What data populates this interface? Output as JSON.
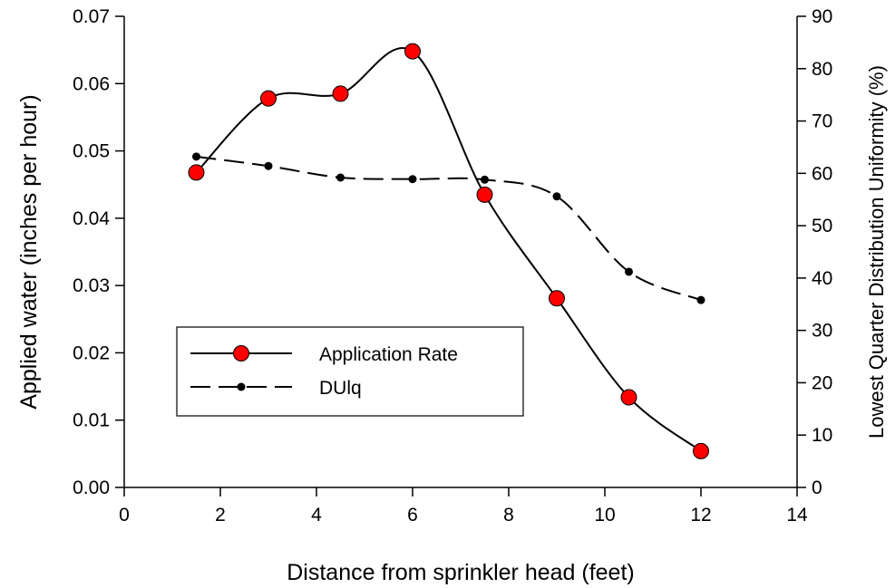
{
  "chart_data": {
    "type": "line",
    "xlabel": "Distance from sprinkler head (feet)",
    "ylabel": "Applied water (inches per hour)",
    "y2label": "Lowest Quarter Distribution Uniformity (%)",
    "xlim": [
      0,
      14
    ],
    "ylim": [
      0,
      0.07
    ],
    "y2lim": [
      0,
      90
    ],
    "x_ticks": [
      "0",
      "2",
      "4",
      "6",
      "8",
      "10",
      "12",
      "14"
    ],
    "y_ticks": [
      "0.00",
      "0.01",
      "0.02",
      "0.03",
      "0.04",
      "0.05",
      "0.06",
      "0.07"
    ],
    "y2_ticks": [
      "0",
      "10",
      "20",
      "30",
      "40",
      "50",
      "60",
      "70",
      "80",
      "90"
    ],
    "grid": false,
    "legend_position": "lower-left",
    "series": [
      {
        "name": "Application Rate",
        "axis": "left",
        "line_style": "solid",
        "marker": "large-red-circle",
        "color": "#ff0000",
        "x": [
          1.5,
          3,
          4.5,
          6,
          7.5,
          9,
          10.5,
          12
        ],
        "values": [
          0.0468,
          0.0578,
          0.0585,
          0.0648,
          0.0435,
          0.0281,
          0.0134,
          0.0054
        ]
      },
      {
        "name": "DUlq",
        "axis": "right",
        "line_style": "dashed",
        "marker": "small-black-dot",
        "color": "#000000",
        "x": [
          1.5,
          3,
          4.5,
          6,
          7.5,
          9,
          10.5,
          12
        ],
        "values": [
          63.2,
          61.4,
          59.2,
          58.9,
          58.8,
          55.6,
          41.2,
          35.8
        ]
      }
    ]
  }
}
